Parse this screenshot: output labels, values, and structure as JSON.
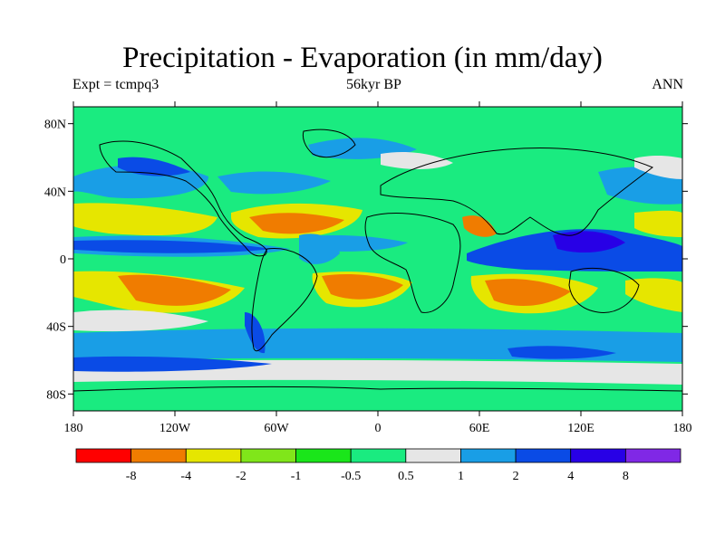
{
  "title": "Precipitation - Evaporation (in mm/day)",
  "subtitle_left": "Expt = tcmpq3",
  "subtitle_center": "56kyr BP",
  "subtitle_right": "ANN",
  "map": {
    "projection": "cylindrical-equidistant",
    "lon_range": [
      -180,
      180
    ],
    "lat_range": [
      -90,
      90
    ],
    "lat_ticks": [
      {
        "value": 80,
        "label": "80N"
      },
      {
        "value": 40,
        "label": "40N"
      },
      {
        "value": 0,
        "label": "0"
      },
      {
        "value": -40,
        "label": "40S"
      },
      {
        "value": -80,
        "label": "80S"
      }
    ],
    "lon_ticks": [
      {
        "value": -180,
        "label": "180"
      },
      {
        "value": -120,
        "label": "120W"
      },
      {
        "value": -60,
        "label": "60W"
      },
      {
        "value": 0,
        "label": "0"
      },
      {
        "value": 60,
        "label": "60E"
      },
      {
        "value": 120,
        "label": "120E"
      },
      {
        "value": 180,
        "label": "180"
      }
    ]
  },
  "colorbar": {
    "colors": [
      "#ff0000",
      "#f07c00",
      "#e6e600",
      "#80e61a",
      "#1ae61a",
      "#1aeb80",
      "#e6e6e6",
      "#199ee6",
      "#0a4be6",
      "#2800e6",
      "#8028e6"
    ],
    "labels": [
      "-8",
      "-4",
      "-2",
      "-1",
      "-0.5",
      "0.5",
      "1",
      "2",
      "4",
      "8"
    ]
  }
}
